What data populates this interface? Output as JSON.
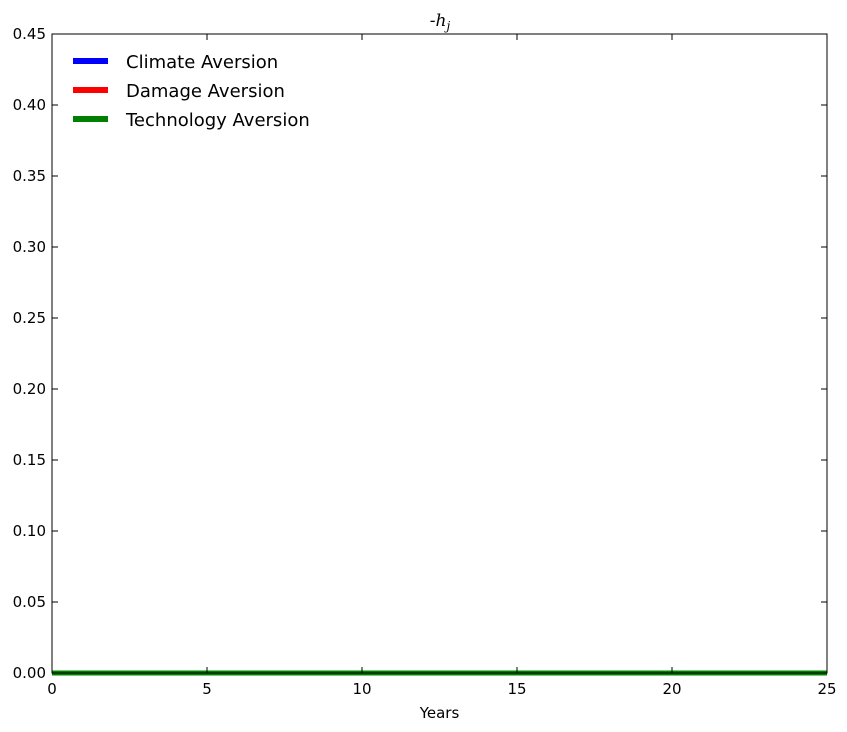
{
  "chart_data": {
    "type": "line",
    "title": "-h_j",
    "title_prefix": "-",
    "title_symbol": "h",
    "title_subscript": "j",
    "xlabel": "Years",
    "ylabel": "",
    "xlim": [
      0,
      25
    ],
    "ylim": [
      0,
      0.45
    ],
    "x_ticks": [
      0,
      5,
      10,
      15,
      20,
      25
    ],
    "x_tick_labels": [
      "0",
      "5",
      "10",
      "15",
      "20",
      "25"
    ],
    "y_ticks": [
      0,
      0.05,
      0.1,
      0.15,
      0.2,
      0.25,
      0.3,
      0.35,
      0.4,
      0.45
    ],
    "y_tick_labels": [
      "0.00",
      "0.05",
      "0.10",
      "0.15",
      "0.20",
      "0.25",
      "0.30",
      "0.35",
      "0.40",
      "0.45"
    ],
    "grid": false,
    "legend_position": "top-left",
    "series": [
      {
        "name": "Climate Aversion",
        "color": "#0000ff",
        "x": [
          0,
          25
        ],
        "y": [
          0,
          0
        ]
      },
      {
        "name": "Damage Aversion",
        "color": "#ff0000",
        "x": [
          0,
          25
        ],
        "y": [
          0,
          0
        ]
      },
      {
        "name": "Technology Aversion",
        "color": "#008000",
        "x": [
          0,
          25
        ],
        "y": [
          0,
          0
        ]
      }
    ]
  }
}
